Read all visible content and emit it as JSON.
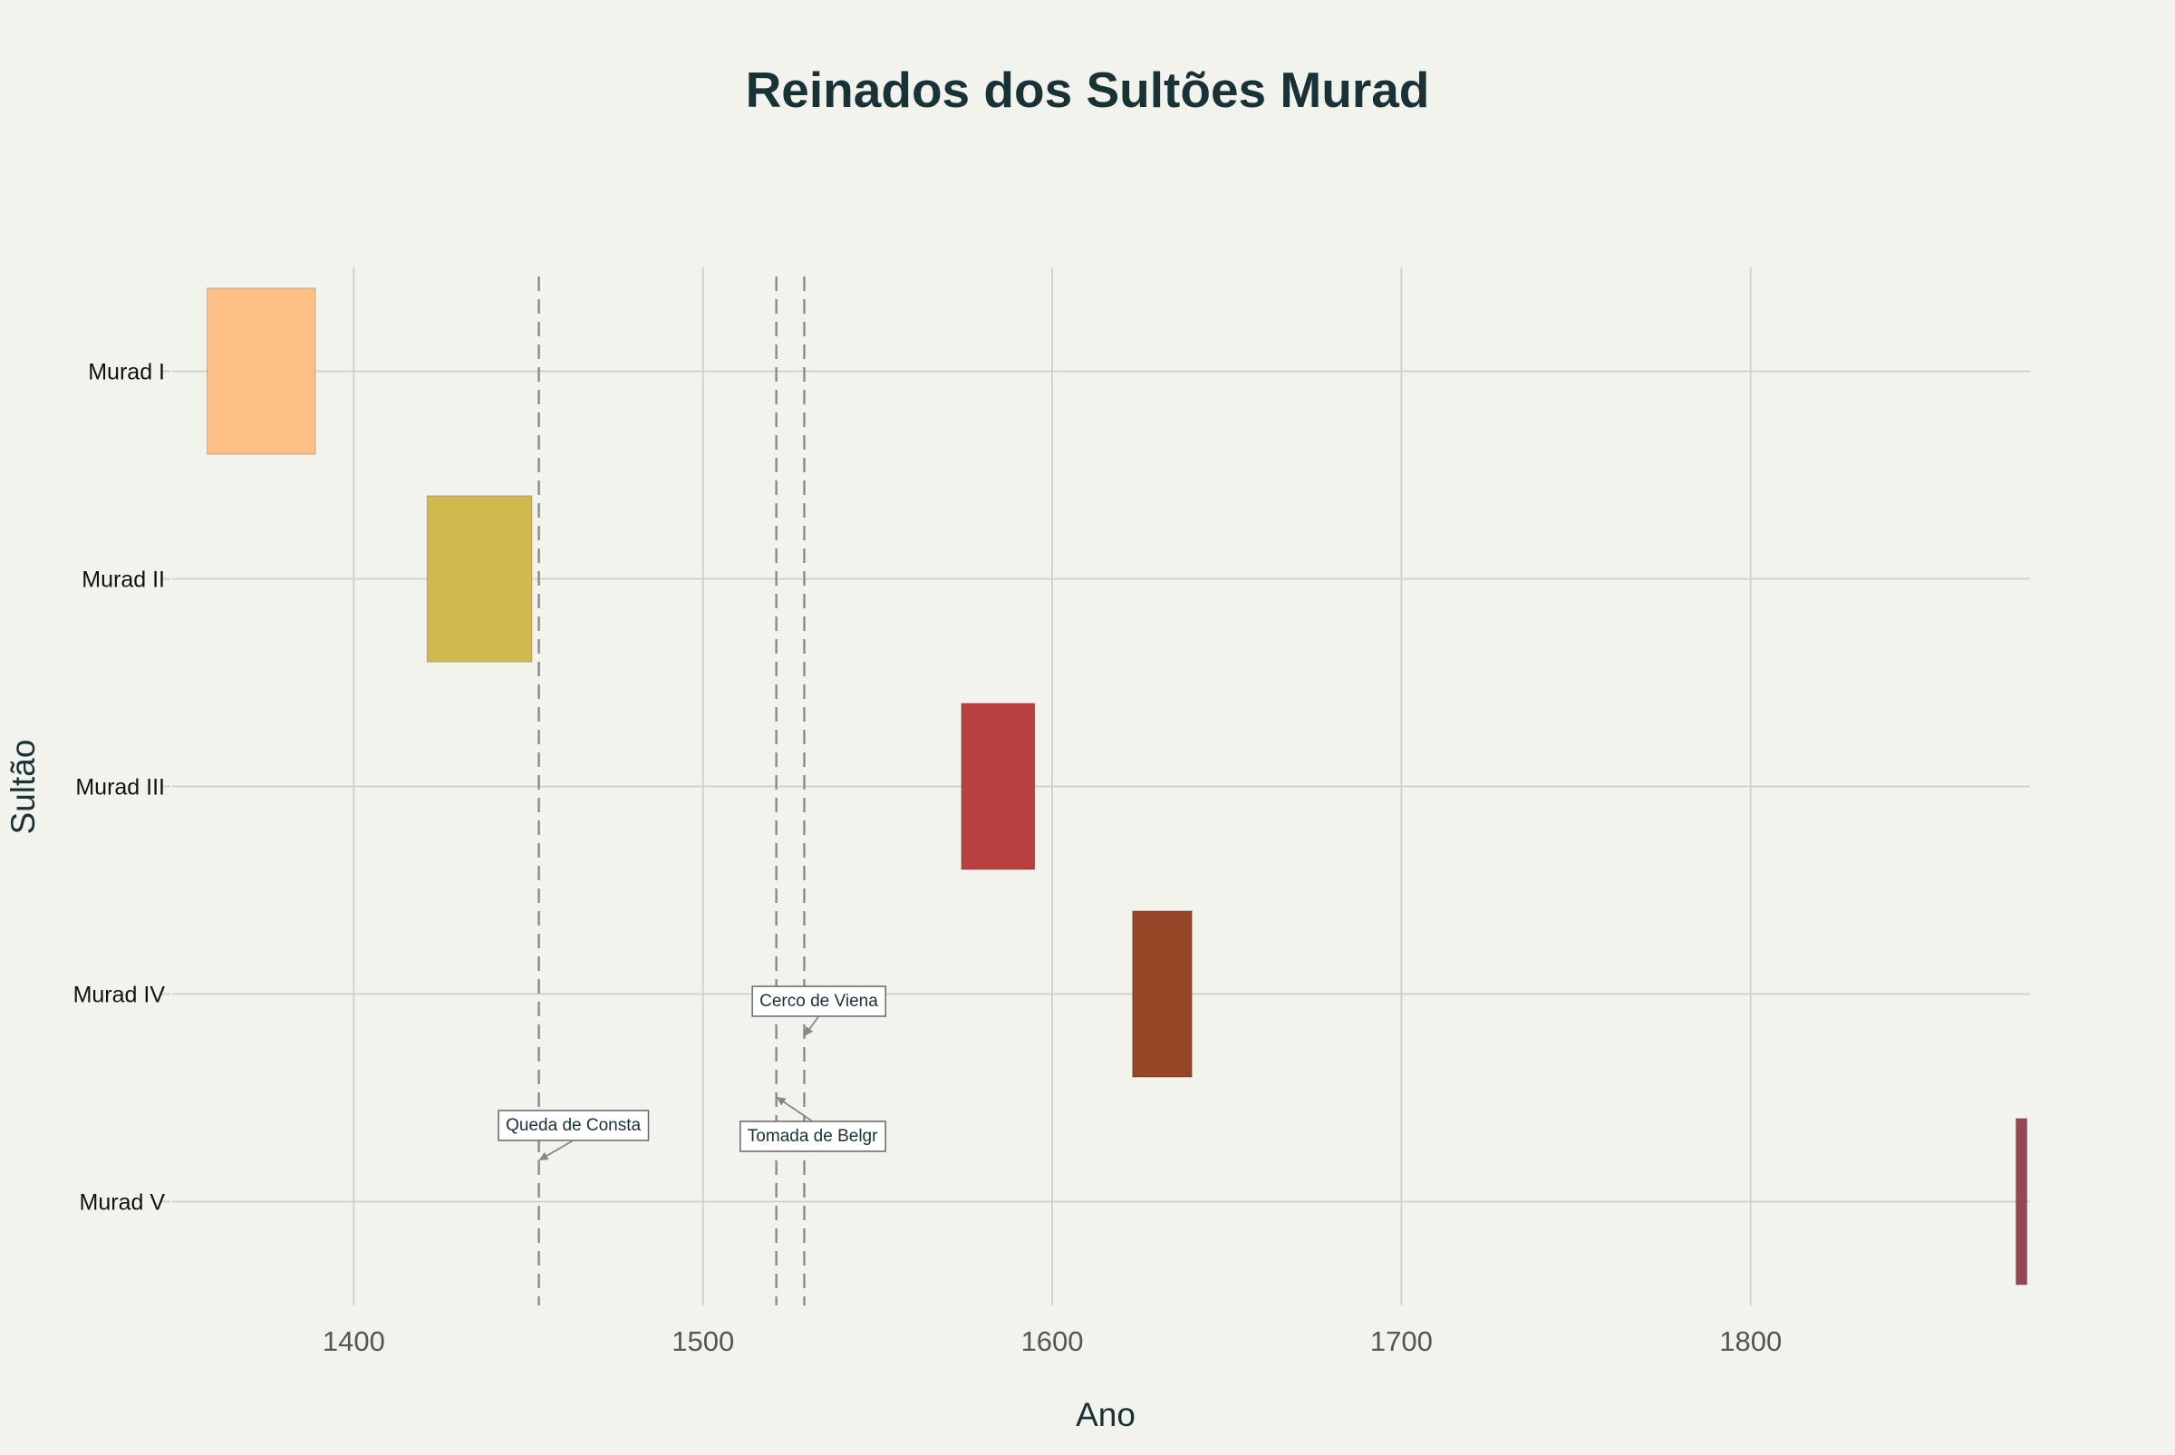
{
  "chart_data": {
    "type": "bar",
    "orientation": "horizontal",
    "title": "Reinados dos Sultões Murad",
    "xlabel": "Ano",
    "ylabel": "Sultão",
    "xlim": [
      1348,
      1880
    ],
    "x_ticks": [
      "1400",
      "1500",
      "1600",
      "1700",
      "1800"
    ],
    "x_tick_values": [
      1400,
      1500,
      1600,
      1700,
      1800
    ],
    "grid": true,
    "legend": "none",
    "categories": [
      "Murad I",
      "Murad II",
      "Murad III",
      "Murad IV",
      "Murad V"
    ],
    "reigns": [
      {
        "name": "Murad I",
        "start": 1358,
        "end": 1389,
        "color": "#ffc087"
      },
      {
        "name": "Murad II",
        "start": 1421,
        "end": 1451,
        "color": "#d2b94e"
      },
      {
        "name": "Murad III",
        "start": 1574,
        "end": 1595,
        "color": "#b94040"
      },
      {
        "name": "Murad IV",
        "start": 1623,
        "end": 1640,
        "color": "#974527"
      },
      {
        "name": "Murad V",
        "start": 1876,
        "end": 1876.3,
        "color": "#974653"
      }
    ],
    "events": [
      {
        "year": 1453,
        "label": "Queda de Consta"
      },
      {
        "year": 1521,
        "label": "Tomada de Belgr"
      },
      {
        "year": 1529,
        "label": "Cerco de Viena"
      }
    ]
  }
}
